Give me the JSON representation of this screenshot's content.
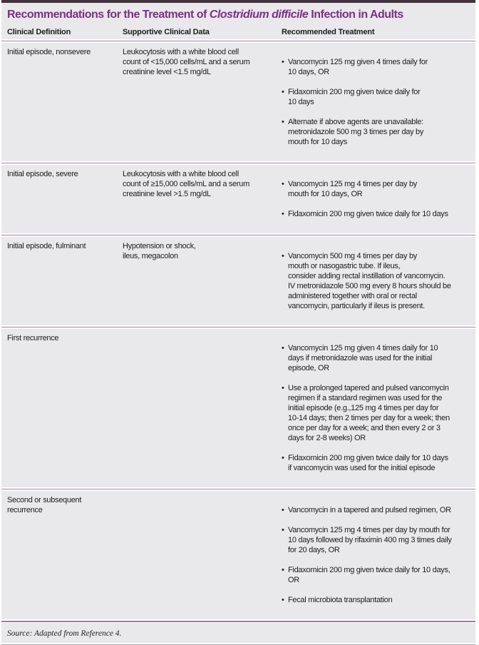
{
  "title": {
    "prefix": "Recommendations for the Treatment of ",
    "italic": "Clostridium difficile",
    "suffix": " Infection in Adults"
  },
  "columns": [
    "Clinical Definition",
    "Supportive Clinical Data",
    "Recommended Treatment"
  ],
  "rows": [
    {
      "definition": "Initial episode, nonsevere",
      "supportive": "Leukocytosis with a white blood cell\ncount of <15,000 cells/mL and a serum\ncreatinine level <1.5 mg/dL",
      "treatments": [
        "Vancomycin 125 mg given 4 times daily for\n10 days, OR",
        "Fidaxomicin 200 mg given twice daily for\n10 days",
        "Alternate if above agents are unavailable:\nmetronidazole 500 mg 3 times per day by\nmouth for 10 days"
      ]
    },
    {
      "definition": "Initial episode, severe",
      "supportive": "Leukocytosis with a white blood cell\ncount of ≥15,000 cells/mL and a serum\ncreatinine level >1.5 mg/dL",
      "treatments": [
        "Vancomycin 125 mg 4 times per day by\nmouth for 10 days, OR",
        "Fidaxomicin 200 mg given twice daily for 10 days"
      ]
    },
    {
      "definition": "Initial episode, fulminant",
      "supportive": "Hypotension or shock,\nileus, megacolon",
      "treatments": [
        "Vancomycin 500 mg 4 times per day by\nmouth or nasogastric tube. If ileus,\nconsider adding rectal instillation of vancomycin.\nIV metronidazole 500 mg every 8 hours should be\nadministered together with oral or rectal\nvancomycin, particularly if ileus is present."
      ]
    },
    {
      "definition": "First recurrence",
      "supportive": "",
      "treatments": [
        "Vancomycin 125 mg given 4 times daily for 10\ndays if metronidazole was used for the initial\nepisode, OR",
        "Use a prolonged tapered and pulsed vancomycin\nregimen if a standard regimen was used for the\ninitial episode (e.g.,125 mg 4 times per day for\n10-14 days; then 2 times per day for a week; then\nonce per day for a week; and then every 2 or 3\ndays for 2-8 weeks) OR",
        "Fidaxomicin 200 mg given twice daily for 10 days\nif vancomycin was used for the initial episode"
      ]
    },
    {
      "definition": "Second or subsequent\nrecurrence",
      "supportive": "",
      "treatments": [
        "Vancomycin in a tapered and pulsed regimen, OR",
        "Vancomycin 125 mg 4 times per day by mouth for\n10 days followed by rifaximin 400 mg 3 times daily\nfor 20 days, OR",
        "Fidaxomicin 200 mg given twice daily for 10 days,\nOR",
        "Fecal microbiota transplantation"
      ]
    }
  ],
  "source": "Source: Adapted from Reference 4.",
  "colors": {
    "title_purple": "#7e2e87",
    "rule_purple": "#a184a8",
    "table_background": "#e9e8ea",
    "top_bar": "#44323e"
  }
}
